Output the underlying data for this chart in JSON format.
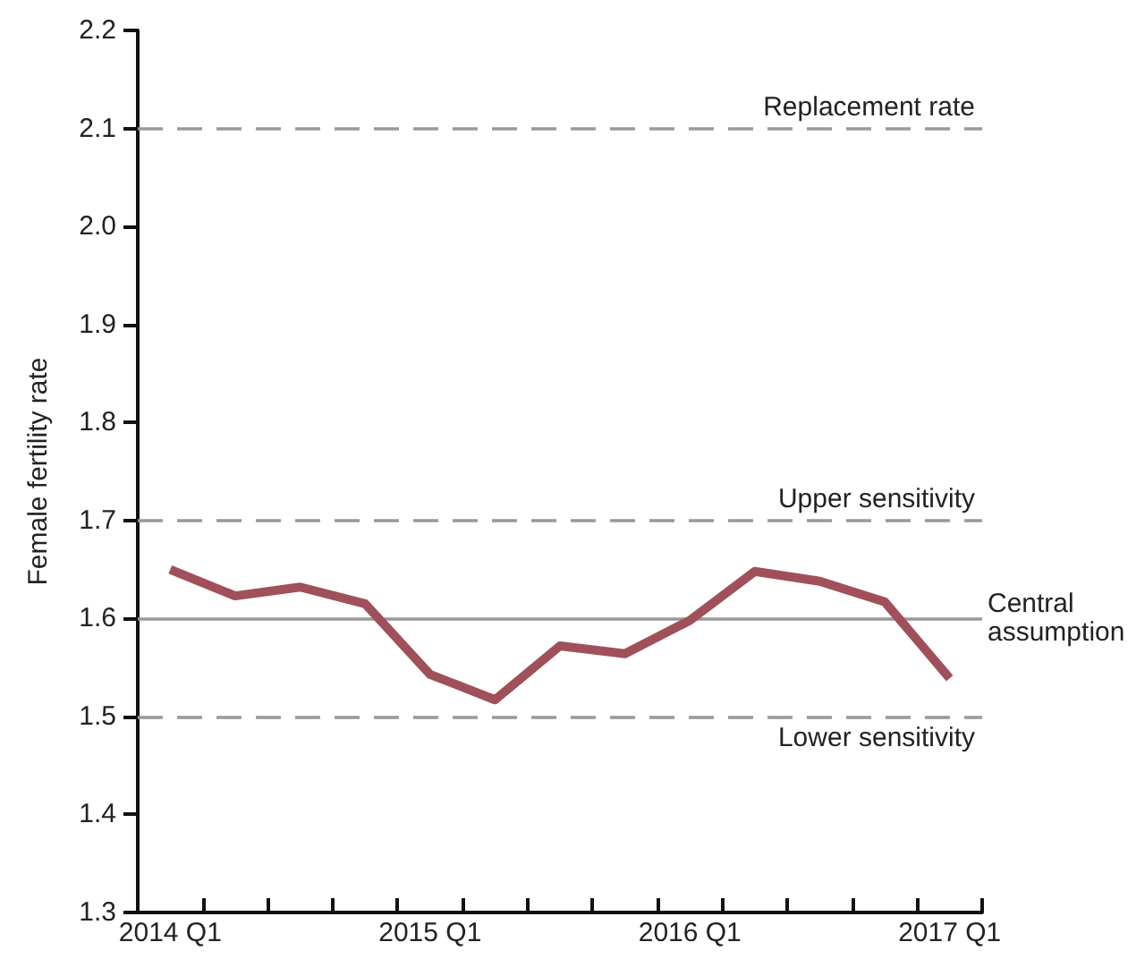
{
  "chart_data": {
    "type": "line",
    "ylabel": "Female fertility rate",
    "categories": [
      "2014 Q1",
      null,
      null,
      null,
      "2015 Q1",
      null,
      null,
      null,
      "2016 Q1",
      null,
      null,
      null,
      "2017 Q1"
    ],
    "series": [
      {
        "color": "#a0505a",
        "values": [
          1.65,
          1.623,
          1.632,
          1.615,
          1.543,
          1.517,
          1.572,
          1.564,
          1.598,
          1.648,
          1.638,
          1.617,
          1.539
        ]
      }
    ],
    "ylim": [
      1.3,
      2.2
    ],
    "yticks": [
      1.3,
      1.4,
      1.5,
      1.6,
      1.7,
      1.8,
      1.9,
      {
        "value": 2,
        "label": "2.0"
      },
      2.1,
      2.2
    ],
    "ref_lines": [
      {
        "axis": "y",
        "value": 2.1,
        "label": "Replacement rate",
        "color": "#999999",
        "line_style": "dashed"
      },
      {
        "axis": "y",
        "value": 1.7,
        "label": "Upper sensitivity",
        "color": "#999999",
        "line_style": "dashed"
      },
      {
        "axis": "y",
        "value": 1.6,
        "label": "Central assumption",
        "color": "#999999",
        "line_style": "solid"
      },
      {
        "axis": "y",
        "value": 1.5,
        "label": "Lower sensitivity",
        "color": "#999999",
        "line_style": "dashed"
      }
    ],
    "grid": false,
    "marker": "none",
    "line_style": "solid"
  }
}
